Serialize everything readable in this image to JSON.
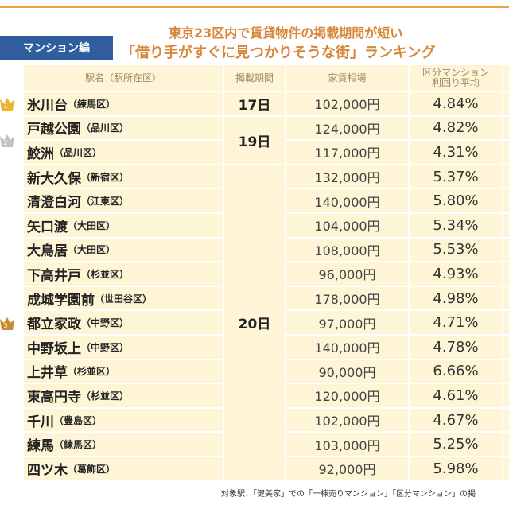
{
  "header": {
    "category": "マンション編",
    "title_line1": "東京23区内で賃貸物件の掲載期間が短い",
    "title_line2": "「借り手がすぐに見つかりそうな街」ランキング"
  },
  "table": {
    "columns": [
      "駅名（駅所在区）",
      "掲載期間",
      "家賃相場",
      "区分マンション\n利回り平均"
    ],
    "groups": [
      {
        "rank": "1",
        "period": "17日",
        "rows": [
          {
            "station": "氷川台",
            "ward": "（練馬区）",
            "rent": "102,000円",
            "yield": "4.84%"
          }
        ]
      },
      {
        "rank": "2",
        "period": "19日",
        "rows": [
          {
            "station": "戸越公園",
            "ward": "（品川区）",
            "rent": "124,000円",
            "yield": "4.82%"
          },
          {
            "station": "鮫洲",
            "ward": "（品川区）",
            "rent": "117,000円",
            "yield": "4.31%"
          }
        ]
      },
      {
        "rank": "3",
        "period": "20日",
        "rows": [
          {
            "station": "新大久保",
            "ward": "（新宿区）",
            "rent": "132,000円",
            "yield": "5.37%"
          },
          {
            "station": "清澄白河",
            "ward": "（江東区）",
            "rent": "140,000円",
            "yield": "5.80%"
          },
          {
            "station": "矢口渡",
            "ward": "（大田区）",
            "rent": "104,000円",
            "yield": "5.34%"
          },
          {
            "station": "大鳥居",
            "ward": "（大田区）",
            "rent": "108,000円",
            "yield": "5.53%"
          },
          {
            "station": "下高井戸",
            "ward": "（杉並区）",
            "rent": "96,000円",
            "yield": "4.93%"
          },
          {
            "station": "成城学園前",
            "ward": "（世田谷区）",
            "rent": "178,000円",
            "yield": "4.98%"
          },
          {
            "station": "都立家政",
            "ward": "（中野区）",
            "rent": "97,000円",
            "yield": "4.71%"
          },
          {
            "station": "中野坂上",
            "ward": "（中野区）",
            "rent": "140,000円",
            "yield": "4.78%"
          },
          {
            "station": "上井草",
            "ward": "（杉並区）",
            "rent": "90,000円",
            "yield": "6.66%"
          },
          {
            "station": "東高円寺",
            "ward": "（杉並区）",
            "rent": "120,000円",
            "yield": "4.61%"
          },
          {
            "station": "千川",
            "ward": "（豊島区）",
            "rent": "102,000円",
            "yield": "4.67%"
          },
          {
            "station": "練馬",
            "ward": "（練馬区）",
            "rent": "103,000円",
            "yield": "5.25%"
          },
          {
            "station": "四ツ木",
            "ward": "（葛飾区）",
            "rent": "92,000円",
            "yield": "5.98%"
          }
        ]
      }
    ]
  },
  "footer": {
    "note": "対象駅：「健美家」での「一棟売りマンション」「区分マンション」の掲"
  }
}
